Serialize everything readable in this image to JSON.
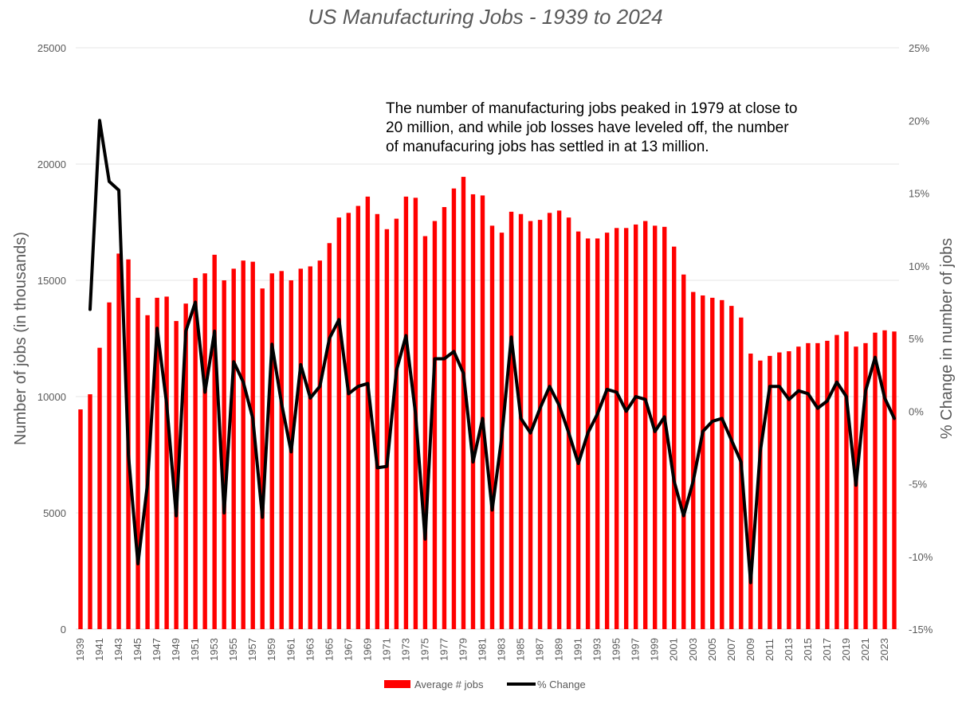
{
  "chart_data": {
    "type": "bar",
    "title": "US Manufacturing Jobs - 1939 to 2024",
    "ylabel": "Number of jobs (in thousands)",
    "y2label": "% Change in number of jobs",
    "ylim": [
      0,
      25000
    ],
    "y2lim": [
      -15,
      25
    ],
    "yticks": [
      "0",
      "5000",
      "10000",
      "15000",
      "20000",
      "25000"
    ],
    "y2ticks": [
      "-15%",
      "-10%",
      "-5%",
      "0%",
      "5%",
      "10%",
      "15%",
      "20%",
      "25%"
    ],
    "grid": true,
    "legend_position": "bottom",
    "annotation": [
      "The number of manufacturing jobs peaked in 1979 at close to",
      "20 million, and while job losses have leveled off, the number",
      "of manufacuring jobs has settled in at 13 million."
    ],
    "colors": {
      "bars": "#ff0000",
      "line": "#000000"
    },
    "categories": [
      "1939",
      "1940",
      "1941",
      "1942",
      "1943",
      "1944",
      "1945",
      "1946",
      "1947",
      "1948",
      "1949",
      "1950",
      "1951",
      "1952",
      "1953",
      "1954",
      "1955",
      "1956",
      "1957",
      "1958",
      "1959",
      "1960",
      "1961",
      "1962",
      "1963",
      "1964",
      "1965",
      "1966",
      "1967",
      "1968",
      "1969",
      "1970",
      "1971",
      "1972",
      "1973",
      "1974",
      "1975",
      "1976",
      "1977",
      "1978",
      "1979",
      "1980",
      "1981",
      "1982",
      "1983",
      "1984",
      "1985",
      "1986",
      "1987",
      "1988",
      "1989",
      "1990",
      "1991",
      "1992",
      "1993",
      "1994",
      "1995",
      "1996",
      "1997",
      "1998",
      "1999",
      "2000",
      "2001",
      "2002",
      "2003",
      "2004",
      "2005",
      "2006",
      "2007",
      "2008",
      "2009",
      "2010",
      "2011",
      "2012",
      "2013",
      "2014",
      "2015",
      "2016",
      "2017",
      "2018",
      "2019",
      "2020",
      "2021",
      "2022",
      "2023",
      "2024"
    ],
    "series": [
      {
        "name": "Average # jobs",
        "type": "bar",
        "axis": "left",
        "values": [
          9450,
          10100,
          12100,
          14050,
          16150,
          15900,
          14250,
          13500,
          14250,
          14300,
          13250,
          14000,
          15100,
          15300,
          16100,
          15000,
          15500,
          15850,
          15800,
          14650,
          15300,
          15400,
          15000,
          15500,
          15600,
          15850,
          16600,
          17700,
          17900,
          18200,
          18600,
          17850,
          17200,
          17650,
          18600,
          18550,
          16900,
          17550,
          18150,
          18950,
          19450,
          18700,
          18650,
          17350,
          17050,
          17950,
          17850,
          17550,
          17600,
          17900,
          18000,
          17700,
          17100,
          16800,
          16800,
          17050,
          17250,
          17250,
          17400,
          17550,
          17350,
          17300,
          16450,
          15250,
          14500,
          14350,
          14250,
          14150,
          13900,
          13400,
          11850,
          11550,
          11750,
          11900,
          11950,
          12150,
          12300,
          12300,
          12400,
          12650,
          12800,
          12150,
          12300,
          12750,
          12850,
          12800
        ]
      },
      {
        "name": "% Change",
        "type": "line",
        "axis": "right",
        "values": [
          null,
          7.0,
          20.0,
          15.8,
          15.2,
          -3.0,
          -10.5,
          -5.0,
          5.7,
          0.5,
          -7.2,
          5.5,
          7.5,
          1.3,
          5.5,
          -7.0,
          3.4,
          2.0,
          -0.5,
          -7.3,
          4.6,
          0.5,
          -2.8,
          3.2,
          0.9,
          1.7,
          5.0,
          6.3,
          1.2,
          1.7,
          1.9,
          -3.9,
          -3.8,
          2.8,
          5.2,
          -0.2,
          -8.8,
          3.6,
          3.6,
          4.1,
          2.6,
          -3.5,
          -0.5,
          -6.8,
          -1.8,
          5.1,
          -0.5,
          -1.5,
          0.2,
          1.7,
          0.4,
          -1.5,
          -3.6,
          -1.5,
          -0.2,
          1.5,
          1.3,
          0.0,
          1.0,
          0.8,
          -1.4,
          -0.4,
          -4.8,
          -7.2,
          -4.8,
          -1.4,
          -0.7,
          -0.5,
          -2.0,
          -3.5,
          -11.8,
          -2.8,
          1.7,
          1.7,
          0.8,
          1.4,
          1.2,
          0.2,
          0.7,
          2.0,
          1.0,
          -5.1,
          1.4,
          3.7,
          0.9,
          -0.5
        ]
      }
    ],
    "xtick_every": 2
  }
}
